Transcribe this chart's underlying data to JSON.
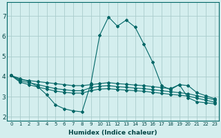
{
  "xlabel": "Humidex (Indice chaleur)",
  "bg_color": "#d4eeee",
  "grid_color": "#aacccc",
  "line_color": "#006666",
  "xlim": [
    -0.5,
    23.5
  ],
  "ylim": [
    1.8,
    7.7
  ],
  "yticks": [
    2,
    3,
    4,
    5,
    6,
    7
  ],
  "xticks": [
    0,
    1,
    2,
    3,
    4,
    5,
    6,
    7,
    8,
    9,
    10,
    11,
    12,
    13,
    14,
    15,
    16,
    17,
    18,
    19,
    20,
    21,
    22,
    23
  ],
  "series": [
    {
      "x": [
        0,
        1,
        2,
        3,
        4,
        5,
        6,
        7,
        8,
        9,
        10,
        11,
        12,
        13,
        14,
        15,
        16,
        17,
        18,
        19,
        20,
        21,
        22,
        23
      ],
      "y": [
        4.05,
        3.9,
        3.75,
        3.5,
        3.1,
        2.6,
        2.4,
        2.3,
        2.25,
        3.65,
        6.05,
        6.95,
        6.5,
        6.8,
        6.45,
        5.6,
        4.7,
        3.55,
        3.35,
        3.6,
        2.95,
        2.75,
        2.7,
        2.65
      ]
    },
    {
      "x": [
        0,
        1,
        2,
        3,
        4,
        5,
        6,
        7,
        8,
        9,
        10,
        11,
        12,
        13,
        14,
        15,
        16,
        17,
        18,
        19,
        20,
        21,
        22,
        23
      ],
      "y": [
        4.05,
        3.85,
        3.8,
        3.75,
        3.7,
        3.65,
        3.6,
        3.55,
        3.55,
        3.6,
        3.65,
        3.7,
        3.65,
        3.62,
        3.58,
        3.55,
        3.5,
        3.45,
        3.4,
        3.6,
        3.55,
        3.2,
        3.05,
        2.9
      ]
    },
    {
      "x": [
        0,
        1,
        2,
        3,
        4,
        5,
        6,
        7,
        8,
        9,
        10,
        11,
        12,
        13,
        14,
        15,
        16,
        17,
        18,
        19,
        20,
        21,
        22,
        23
      ],
      "y": [
        4.05,
        3.78,
        3.7,
        3.6,
        3.5,
        3.4,
        3.35,
        3.3,
        3.3,
        3.45,
        3.52,
        3.55,
        3.5,
        3.47,
        3.43,
        3.4,
        3.35,
        3.3,
        3.25,
        3.2,
        3.15,
        3.05,
        2.95,
        2.85
      ]
    },
    {
      "x": [
        0,
        1,
        2,
        3,
        4,
        5,
        6,
        7,
        8,
        9,
        10,
        11,
        12,
        13,
        14,
        15,
        16,
        17,
        18,
        19,
        20,
        21,
        22,
        23
      ],
      "y": [
        4.05,
        3.72,
        3.6,
        3.48,
        3.38,
        3.28,
        3.22,
        3.18,
        3.18,
        3.3,
        3.38,
        3.4,
        3.36,
        3.33,
        3.3,
        3.27,
        3.22,
        3.17,
        3.12,
        3.08,
        3.03,
        2.93,
        2.83,
        2.73
      ]
    }
  ]
}
